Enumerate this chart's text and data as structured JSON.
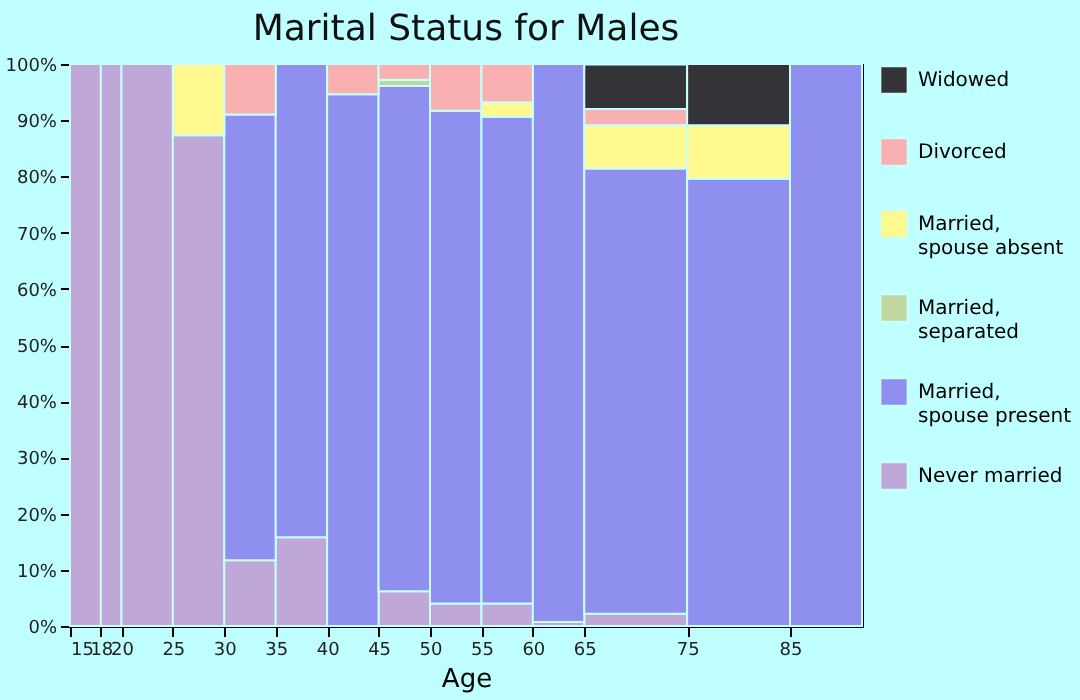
{
  "chart_data": {
    "type": "bar",
    "stacked": true,
    "title": "Marital Status for Males",
    "xlabel": "Age",
    "x": [
      16.5,
      19,
      22.5,
      27.5,
      32.5,
      37.5,
      42.5,
      47.5,
      52.5,
      57.5,
      62.5,
      70,
      80,
      88.5
    ],
    "xlim": [
      15,
      92
    ],
    "xticks": [
      15,
      18,
      20,
      25,
      30,
      35,
      40,
      45,
      50,
      55,
      60,
      65,
      75,
      85
    ],
    "ylim": [
      0,
      100
    ],
    "yticks": [
      {
        "value": 0,
        "label": "0%"
      },
      {
        "value": 10,
        "label": "10%"
      },
      {
        "value": 20,
        "label": "20%"
      },
      {
        "value": 30,
        "label": "30%"
      },
      {
        "value": 40,
        "label": "40%"
      },
      {
        "value": 50,
        "label": "50%"
      },
      {
        "value": 60,
        "label": "60%"
      },
      {
        "value": 70,
        "label": "70%"
      },
      {
        "value": 80,
        "label": "80%"
      },
      {
        "value": 90,
        "label": "90%"
      },
      {
        "value": 100,
        "label": "100%"
      }
    ],
    "legend": "right",
    "series": [
      {
        "name": "Never married",
        "color": "#bfa8d8",
        "values": [
          100,
          100,
          100,
          87.3,
          11.7,
          15.8,
          null,
          6.2,
          4.0,
          4.0,
          0.7,
          2.2,
          null,
          null
        ]
      },
      {
        "name": "Married, spouse present",
        "color": "#8f8ff0",
        "values": [
          null,
          null,
          null,
          null,
          79.3,
          84.2,
          94.6,
          89.9,
          87.7,
          86.6,
          99.3,
          79.2,
          79.6,
          100
        ]
      },
      {
        "name": "Married, separated",
        "color": "#c0d8a0",
        "values": [
          null,
          null,
          null,
          null,
          null,
          null,
          null,
          1.1,
          null,
          null,
          null,
          null,
          null,
          null
        ]
      },
      {
        "name": "Married, spouse absent",
        "color": "#fff88c",
        "values": [
          null,
          null,
          null,
          12.7,
          null,
          null,
          null,
          null,
          null,
          2.6,
          null,
          7.7,
          9.5,
          null
        ]
      },
      {
        "name": "Divorced",
        "color": "#f8b0b0",
        "values": [
          null,
          null,
          null,
          null,
          9.0,
          null,
          5.4,
          2.8,
          8.3,
          6.8,
          null,
          2.9,
          null,
          null
        ]
      },
      {
        "name": "Widowed",
        "color": "#333338",
        "values": [
          null,
          null,
          null,
          null,
          null,
          null,
          null,
          null,
          null,
          null,
          null,
          7.9,
          10.9,
          null
        ]
      }
    ]
  }
}
